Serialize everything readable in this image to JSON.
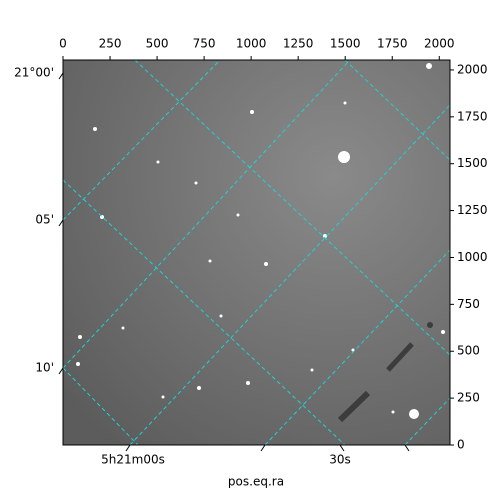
{
  "chart_data": {
    "type": "image",
    "xlabel": "pos.eq.ra",
    "xlim": [
      0,
      2057
    ],
    "xticks": [
      0,
      250,
      500,
      750,
      1000,
      1250,
      1500,
      1750,
      2000
    ],
    "ylim": [
      0,
      2053
    ],
    "yticks": [
      0,
      250,
      500,
      750,
      1000,
      1250,
      1500,
      1750,
      2000
    ],
    "ra_tick_labels": [
      "5h21m00s",
      "30s"
    ],
    "dec_tick_labels": [
      "21°00'",
      "05'",
      "10'"
    ]
  }
}
